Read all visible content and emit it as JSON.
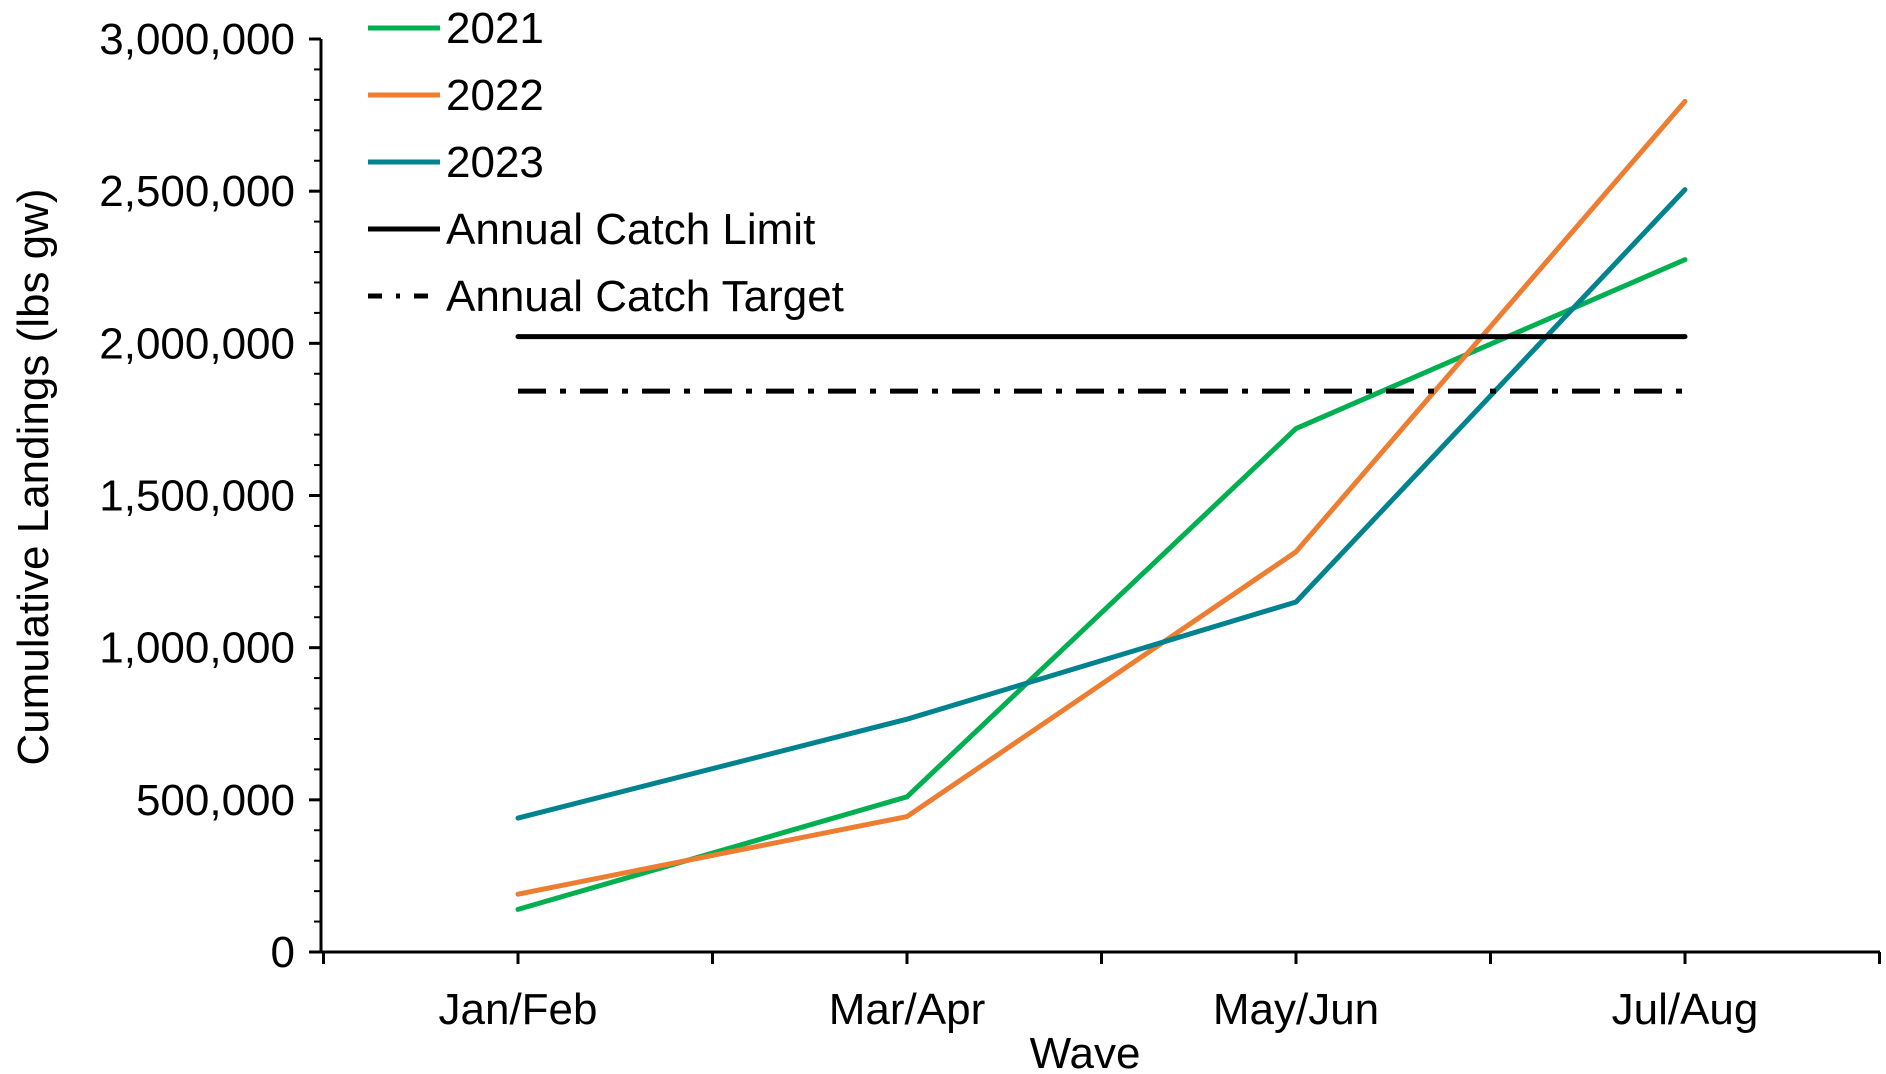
{
  "chart_data": {
    "type": "line",
    "title": "",
    "xlabel": "Wave",
    "ylabel": "Cumulative Landings (lbs gw)",
    "categories": [
      "Jan/Feb",
      "Mar/Apr",
      "May/Jun",
      "Jul/Aug"
    ],
    "ylim": [
      0,
      3000000
    ],
    "yticks": [
      0,
      500000,
      1000000,
      1500000,
      2000000,
      2500000,
      3000000
    ],
    "ytick_labels": [
      "0",
      "500,000",
      "1,000,000",
      "1,500,000",
      "2,000,000",
      "2,500,000",
      "3,000,000"
    ],
    "grid": false,
    "legend_position": "top-left",
    "series": [
      {
        "name": "2021",
        "color": "#00b050",
        "style": "solid",
        "values": [
          140000,
          510000,
          1720000,
          2275000
        ]
      },
      {
        "name": "2022",
        "color": "#ed7d31",
        "style": "solid",
        "values": [
          190000,
          445000,
          1315000,
          2795000
        ]
      },
      {
        "name": "2023",
        "color": "#00838f",
        "style": "solid",
        "values": [
          440000,
          765000,
          1150000,
          2505000
        ]
      },
      {
        "name": "Annual Catch Limit",
        "color": "#000000",
        "style": "solid",
        "values": [
          2022000,
          2022000,
          2022000,
          2022000
        ]
      },
      {
        "name": "Annual Catch Target",
        "color": "#000000",
        "style": "dash-dot",
        "values": [
          1843000,
          1843000,
          1843000,
          1843000
        ]
      }
    ]
  }
}
